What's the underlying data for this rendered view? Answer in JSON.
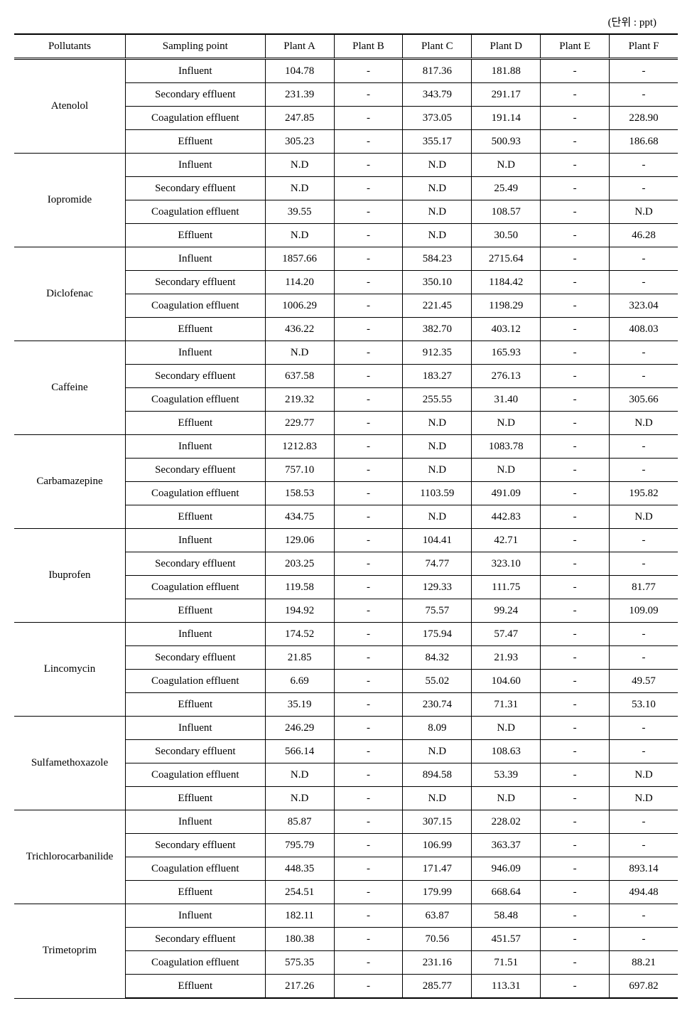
{
  "unit_label": "(단위 : ppt)",
  "headers": {
    "pollutants": "Pollutants",
    "sampling_point": "Sampling point",
    "plants": [
      "Plant A",
      "Plant B",
      "Plant C",
      "Plant D",
      "Plant E",
      "Plant F"
    ]
  },
  "sampling_points": [
    "Influent",
    "Secondary effluent",
    "Coagulation effluent",
    "Effluent"
  ],
  "pollutants": [
    {
      "name": "Atenolol",
      "rows": [
        [
          "104.78",
          "-",
          "817.36",
          "181.88",
          "-",
          "-"
        ],
        [
          "231.39",
          "-",
          "343.79",
          "291.17",
          "-",
          "-"
        ],
        [
          "247.85",
          "-",
          "373.05",
          "191.14",
          "-",
          "228.90"
        ],
        [
          "305.23",
          "-",
          "355.17",
          "500.93",
          "-",
          "186.68"
        ]
      ]
    },
    {
      "name": "Iopromide",
      "rows": [
        [
          "N.D",
          "-",
          "N.D",
          "N.D",
          "-",
          "-"
        ],
        [
          "N.D",
          "-",
          "N.D",
          "25.49",
          "-",
          "-"
        ],
        [
          "39.55",
          "-",
          "N.D",
          "108.57",
          "-",
          "N.D"
        ],
        [
          "N.D",
          "-",
          "N.D",
          "30.50",
          "-",
          "46.28"
        ]
      ]
    },
    {
      "name": "Diclofenac",
      "rows": [
        [
          "1857.66",
          "-",
          "584.23",
          "2715.64",
          "-",
          "-"
        ],
        [
          "114.20",
          "-",
          "350.10",
          "1184.42",
          "-",
          "-"
        ],
        [
          "1006.29",
          "-",
          "221.45",
          "1198.29",
          "-",
          "323.04"
        ],
        [
          "436.22",
          "-",
          "382.70",
          "403.12",
          "-",
          "408.03"
        ]
      ]
    },
    {
      "name": "Caffeine",
      "rows": [
        [
          "N.D",
          "-",
          "912.35",
          "165.93",
          "-",
          "-"
        ],
        [
          "637.58",
          "-",
          "183.27",
          "276.13",
          "-",
          "-"
        ],
        [
          "219.32",
          "-",
          "255.55",
          "31.40",
          "-",
          "305.66"
        ],
        [
          "229.77",
          "-",
          "N.D",
          "N.D",
          "-",
          "N.D"
        ]
      ]
    },
    {
      "name": "Carbamazepine",
      "rows": [
        [
          "1212.83",
          "-",
          "N.D",
          "1083.78",
          "-",
          "-"
        ],
        [
          "757.10",
          "-",
          "N.D",
          "N.D",
          "-",
          "-"
        ],
        [
          "158.53",
          "-",
          "1103.59",
          "491.09",
          "-",
          "195.82"
        ],
        [
          "434.75",
          "-",
          "N.D",
          "442.83",
          "-",
          "N.D"
        ]
      ]
    },
    {
      "name": "Ibuprofen",
      "rows": [
        [
          "129.06",
          "-",
          "104.41",
          "42.71",
          "-",
          "-"
        ],
        [
          "203.25",
          "-",
          "74.77",
          "323.10",
          "-",
          "-"
        ],
        [
          "119.58",
          "-",
          "129.33",
          "111.75",
          "-",
          "81.77"
        ],
        [
          "194.92",
          "-",
          "75.57",
          "99.24",
          "-",
          "109.09"
        ]
      ]
    },
    {
      "name": "Lincomycin",
      "rows": [
        [
          "174.52",
          "-",
          "175.94",
          "57.47",
          "-",
          "-"
        ],
        [
          "21.85",
          "-",
          "84.32",
          "21.93",
          "-",
          "-"
        ],
        [
          "6.69",
          "-",
          "55.02",
          "104.60",
          "-",
          "49.57"
        ],
        [
          "35.19",
          "-",
          "230.74",
          "71.31",
          "-",
          "53.10"
        ]
      ]
    },
    {
      "name": "Sulfamethoxazole",
      "rows": [
        [
          "246.29",
          "-",
          "8.09",
          "N.D",
          "-",
          "-"
        ],
        [
          "566.14",
          "-",
          "N.D",
          "108.63",
          "-",
          "-"
        ],
        [
          "N.D",
          "-",
          "894.58",
          "53.39",
          "-",
          "N.D"
        ],
        [
          "N.D",
          "-",
          "N.D",
          "N.D",
          "-",
          "N.D"
        ]
      ]
    },
    {
      "name": "Trichlorocarbanilide",
      "rows": [
        [
          "85.87",
          "-",
          "307.15",
          "228.02",
          "-",
          "-"
        ],
        [
          "795.79",
          "-",
          "106.99",
          "363.37",
          "-",
          "-"
        ],
        [
          "448.35",
          "-",
          "171.47",
          "946.09",
          "-",
          "893.14"
        ],
        [
          "254.51",
          "-",
          "179.99",
          "668.64",
          "-",
          "494.48"
        ]
      ]
    },
    {
      "name": "Trimetoprim",
      "rows": [
        [
          "182.11",
          "-",
          "63.87",
          "58.48",
          "-",
          "-"
        ],
        [
          "180.38",
          "-",
          "70.56",
          "451.57",
          "-",
          "-"
        ],
        [
          "575.35",
          "-",
          "231.16",
          "71.51",
          "-",
          "88.21"
        ],
        [
          "217.26",
          "-",
          "285.77",
          "113.31",
          "-",
          "697.82"
        ]
      ]
    }
  ]
}
